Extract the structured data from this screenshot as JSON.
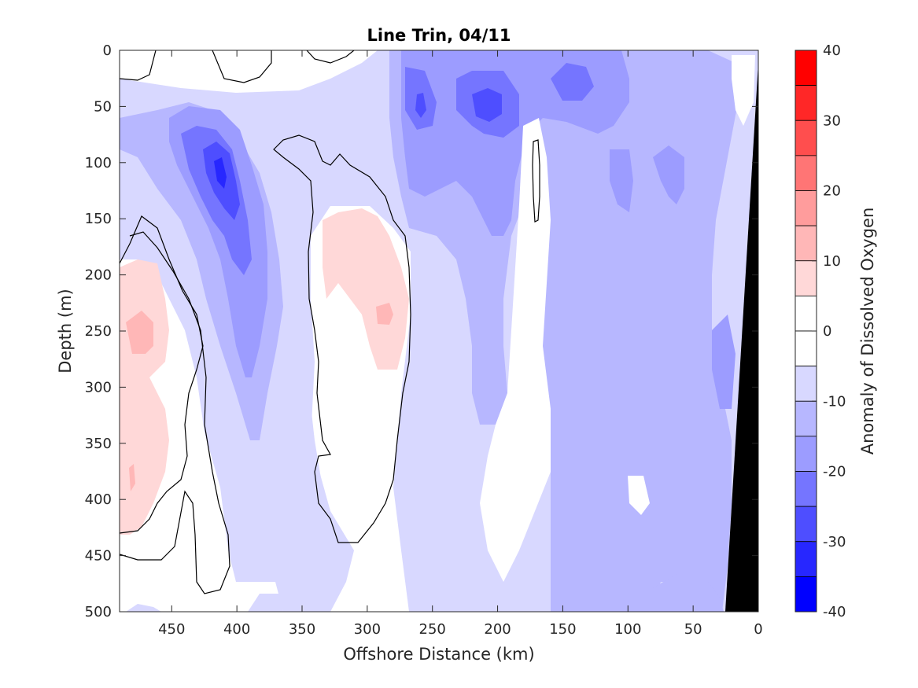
{
  "chart_data": {
    "type": "heatmap",
    "title": "Line Trin, 04/11",
    "xlabel": "Offshore Distance (km)",
    "ylabel": "Depth (m)",
    "xlim": [
      490,
      0
    ],
    "ylim": [
      0,
      500
    ],
    "xticks": [
      "450",
      "400",
      "350",
      "300",
      "250",
      "200",
      "150",
      "100",
      "50",
      "0"
    ],
    "yticks": [
      "0",
      "50",
      "100",
      "150",
      "200",
      "250",
      "300",
      "350",
      "400",
      "450",
      "500"
    ],
    "colorbar": {
      "label": "Anomaly of Dissolved Oxygen",
      "range": [
        -40,
        40
      ],
      "ticks": [
        "40",
        "30",
        "20",
        "10",
        "0",
        "-10",
        "-20",
        "-30",
        "-40"
      ],
      "levels": [
        {
          "from": 35,
          "to": 40,
          "color": "#ff0000"
        },
        {
          "from": 30,
          "to": 35,
          "color": "#ff2727"
        },
        {
          "from": 25,
          "to": 30,
          "color": "#ff4e4e"
        },
        {
          "from": 20,
          "to": 25,
          "color": "#ff7575"
        },
        {
          "from": 15,
          "to": 20,
          "color": "#ff9c9c"
        },
        {
          "from": 10,
          "to": 15,
          "color": "#ffb7b7"
        },
        {
          "from": 5,
          "to": 10,
          "color": "#ffd8d8"
        },
        {
          "from": 0,
          "to": 5,
          "color": "#ffffff"
        },
        {
          "from": -5,
          "to": 0,
          "color": "#ffffff"
        },
        {
          "from": -10,
          "to": -5,
          "color": "#d8d8ff"
        },
        {
          "from": -15,
          "to": -10,
          "color": "#b7b7ff"
        },
        {
          "from": -20,
          "to": -15,
          "color": "#9c9cff"
        },
        {
          "from": -25,
          "to": -20,
          "color": "#7575ff"
        },
        {
          "from": -30,
          "to": -25,
          "color": "#4e4eff"
        },
        {
          "from": -35,
          "to": -30,
          "color": "#2727ff"
        },
        {
          "from": -40,
          "to": -35,
          "color": "#0000ff"
        }
      ]
    },
    "zero_contour_color": "#000000",
    "bathymetry_color": "#000000"
  }
}
